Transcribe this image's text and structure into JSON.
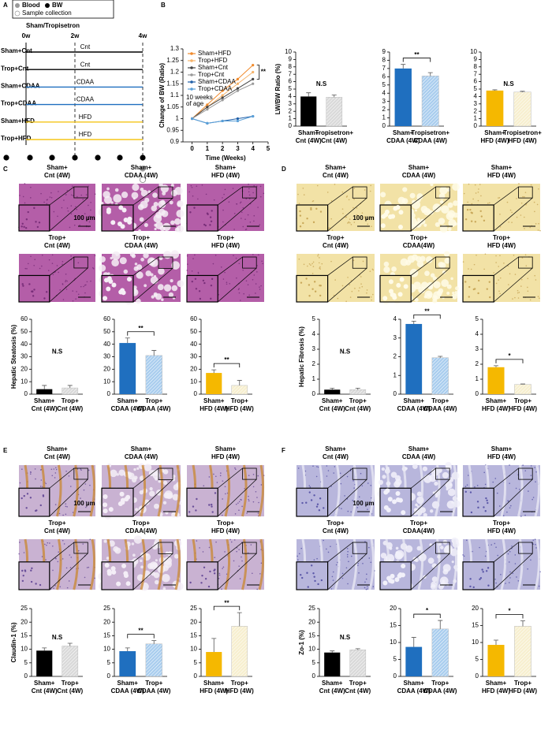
{
  "panel_labels": [
    "A",
    "B",
    "C",
    "D",
    "E",
    "F"
  ],
  "timeline": {
    "legend": [
      "Blood",
      "BW",
      "Sample collection"
    ],
    "title": "Sham/Tropisetron",
    "weeks": [
      "0w",
      "2w",
      "4w"
    ],
    "groups": [
      {
        "name": "Sham+Cnt",
        "diet": "Cnt",
        "color": "#000000"
      },
      {
        "name": "Trop+Cnt",
        "diet": "Cnt",
        "color": "#000000"
      },
      {
        "name": "Sham+CDAA",
        "diet": "CDAA",
        "color": "#1f6fbf"
      },
      {
        "name": "Trop+CDAA",
        "diet": "CDAA",
        "color": "#1f6fbf"
      },
      {
        "name": "Sham+HFD",
        "diet": "HFD",
        "color": "#f5c518"
      },
      {
        "name": "Trop+HFD",
        "diet": "HFD",
        "color": "#f5c518"
      }
    ]
  },
  "histology": [
    {
      "labels": [
        [
          "Sham+",
          "Cnt (4W)"
        ],
        [
          "Sham+",
          "CDAA (4W)"
        ],
        [
          "Sham+",
          "HFD (4W)"
        ],
        [
          "Trop+",
          "Cnt (4W)"
        ],
        [
          "Trop+",
          "CDAA (4W)"
        ],
        [
          "Trop+",
          "HFD (4W)"
        ]
      ],
      "scale_bar": "100 µm"
    },
    {
      "labels": [
        [
          "Sham+",
          "Cnt (4W)"
        ],
        [
          "Sham+",
          "CDAA (4W)"
        ],
        [
          "Sham+",
          "HFD (4W)"
        ],
        [
          "Trop+",
          "Cnt (4W)"
        ],
        [
          "Trop+",
          "CDAA(4W)"
        ],
        [
          "Trop+",
          "HFD (4W)"
        ]
      ],
      "scale_bar": "100 µm"
    },
    {
      "labels": [
        [
          "Sham+",
          "Cnt (4W)"
        ],
        [
          "Sham+",
          "CDAA (4W)"
        ],
        [
          "Sham+",
          "HFD (4W)"
        ],
        [
          "Trop+",
          "Cnt (4W)"
        ],
        [
          "Trop+",
          "CDAA(4W)"
        ],
        [
          "Trop+",
          "HFD (4W)"
        ]
      ],
      "scale_bar": "100 µm"
    },
    {
      "labels": [
        [
          "Sham+",
          "Cnt (4W)"
        ],
        [
          "Sham+",
          "CDAA (4W)"
        ],
        [
          "Sham+",
          "HFD (4W)"
        ],
        [
          "Trop+",
          "Cnt (4W)"
        ],
        [
          "Trop+",
          "CDAA(4W)"
        ],
        [
          "Trop+",
          "HFD (4W)"
        ]
      ],
      "scale_bar": "100 µm"
    }
  ],
  "chart_data": [
    {
      "type": "line",
      "ylabel": "Change of BW (Ratio)",
      "xlabel": "Time (Weeks)",
      "x": [
        0,
        1,
        2,
        3,
        4
      ],
      "xlim": [
        -0.6,
        5
      ],
      "xticks": [
        0,
        1,
        2,
        3,
        4,
        5
      ],
      "ylim": [
        0.9,
        1.3
      ],
      "yticks": [
        0.9,
        0.95,
        1,
        1.05,
        1.1,
        1.15,
        1.2,
        1.25,
        1.3
      ],
      "annotations": [
        "10 weeks",
        "of age",
        "**"
      ],
      "series": [
        {
          "name": "Sham+HFD",
          "color": "#f08a2c",
          "values": [
            1.0,
            1.06,
            1.12,
            1.17,
            1.23
          ]
        },
        {
          "name": "Trop+HFD",
          "color": "#f5b36b",
          "values": [
            1.0,
            1.05,
            1.1,
            1.15,
            1.2
          ]
        },
        {
          "name": "Sham+Cnt",
          "color": "#444444",
          "values": [
            1.0,
            1.05,
            1.09,
            1.13,
            1.17
          ]
        },
        {
          "name": "Trop+Cnt",
          "color": "#9a9a9a",
          "values": [
            1.0,
            1.04,
            1.08,
            1.12,
            1.15
          ]
        },
        {
          "name": "Sham+CDAA",
          "color": "#1f5fa8",
          "values": [
            1.0,
            0.98,
            0.99,
            1.0,
            1.01
          ]
        },
        {
          "name": "Trop+CDAA",
          "color": "#5aa0d8",
          "values": [
            1.0,
            0.98,
            0.99,
            0.99,
            1.01
          ]
        }
      ]
    },
    {
      "type": "bar",
      "ylabel": "LW/BW Ratio (%)",
      "categories": [
        [
          "Sham+",
          "Cnt (4W)"
        ],
        [
          "Tropisetron+",
          "Cnt (4W)"
        ]
      ],
      "values": [
        4.0,
        3.9
      ],
      "errors": [
        0.5,
        0.3
      ],
      "colors": [
        "#000000",
        "#d9d9d9"
      ],
      "ylim": [
        0,
        10
      ],
      "yticks": [
        0,
        1,
        2,
        3,
        4,
        5,
        6,
        7,
        8,
        9,
        10
      ],
      "annotation": "N.S",
      "significance_bracket": false
    },
    {
      "type": "bar",
      "categories": [
        [
          "Sham+",
          "CDAA (4W)"
        ],
        [
          "Tropisetron+",
          "CDAA (4W)"
        ]
      ],
      "values": [
        7.0,
        6.1
      ],
      "errors": [
        0.5,
        0.4
      ],
      "colors": [
        "#1f6fbf",
        "#a9cdee"
      ],
      "ylim": [
        0,
        9
      ],
      "yticks": [
        0,
        1,
        2,
        3,
        4,
        5,
        6,
        7,
        8,
        9
      ],
      "annotation": "**",
      "significance_bracket": true
    },
    {
      "type": "bar",
      "categories": [
        [
          "Sham+",
          "HFD (4W)"
        ],
        [
          "Tropisetron+",
          "HFD (4W)"
        ]
      ],
      "values": [
        4.8,
        4.6
      ],
      "errors": [
        0.1,
        0.1
      ],
      "colors": [
        "#f5b800",
        "#f7efcf"
      ],
      "ylim": [
        0,
        10
      ],
      "yticks": [
        0,
        1,
        2,
        3,
        4,
        5,
        6,
        7,
        8,
        9,
        10
      ],
      "annotation": "N.S",
      "significance_bracket": false
    },
    {
      "type": "bar",
      "ylabel": "Hepatic Steatosis (%)",
      "categories": [
        [
          "Sham+",
          "Cnt (4W)"
        ],
        [
          "Trop+",
          "Cnt (4W)"
        ]
      ],
      "values": [
        4,
        5
      ],
      "errors": [
        3,
        2
      ],
      "colors": [
        "#000000",
        "#d9d9d9"
      ],
      "ylim": [
        0,
        60
      ],
      "yticks": [
        0,
        10,
        20,
        30,
        40,
        50,
        60
      ],
      "annotation": "N.S",
      "significance_bracket": false
    },
    {
      "type": "bar",
      "categories": [
        [
          "Sham+",
          "CDAA (4W)"
        ],
        [
          "Trop+",
          "CDAA (4W)"
        ]
      ],
      "values": [
        41,
        31
      ],
      "errors": [
        4,
        4
      ],
      "colors": [
        "#1f6fbf",
        "#a9cdee"
      ],
      "ylim": [
        0,
        60
      ],
      "yticks": [
        0,
        10,
        20,
        30,
        40,
        50,
        60
      ],
      "annotation": "**",
      "significance_bracket": true
    },
    {
      "type": "bar",
      "categories": [
        [
          "Sham+",
          "HFD (4W)"
        ],
        [
          "Trop+",
          "HFD (4W)"
        ]
      ],
      "values": [
        17,
        7
      ],
      "errors": [
        2.5,
        4
      ],
      "colors": [
        "#f5b800",
        "#f7efcf"
      ],
      "ylim": [
        0,
        60
      ],
      "yticks": [
        0,
        10,
        20,
        30,
        40,
        50,
        60
      ],
      "annotation": "**",
      "significance_bracket": true
    },
    {
      "type": "bar",
      "ylabel": "Hepatic Fibrosis (%)",
      "categories": [
        [
          "Sham+",
          "Cnt (4W)"
        ],
        [
          "Trop+",
          "Cnt (4W)"
        ]
      ],
      "values": [
        0.3,
        0.3
      ],
      "errors": [
        0.1,
        0.1
      ],
      "colors": [
        "#000000",
        "#d9d9d9"
      ],
      "ylim": [
        0,
        5
      ],
      "yticks": [
        0,
        1,
        2,
        3,
        4,
        5
      ],
      "annotation": "N.S",
      "significance_bracket": false
    },
    {
      "type": "bar",
      "categories": [
        [
          "Sham+",
          "CDAA (4W)"
        ],
        [
          "Trop+",
          "CDAA (4W)"
        ]
      ],
      "values": [
        3.75,
        1.95
      ],
      "errors": [
        0.15,
        0.07
      ],
      "colors": [
        "#1f6fbf",
        "#a9cdee"
      ],
      "ylim": [
        0,
        4
      ],
      "yticks": [
        0,
        1,
        2,
        3,
        4
      ],
      "annotation": "**",
      "significance_bracket": true
    },
    {
      "type": "bar",
      "categories": [
        [
          "Sham+",
          "HFD (4W)"
        ],
        [
          "Trop+",
          "HFD (4W)"
        ]
      ],
      "values": [
        1.8,
        0.65
      ],
      "errors": [
        0.1,
        0.03
      ],
      "colors": [
        "#f5b800",
        "#f7efcf"
      ],
      "ylim": [
        0,
        5
      ],
      "yticks": [
        0,
        1,
        2,
        3,
        4,
        5
      ],
      "annotation": "*",
      "significance_bracket": true
    },
    {
      "type": "bar",
      "ylabel": "Claudin-1 (%)",
      "categories": [
        [
          "Sham+",
          "Cnt (4W)"
        ],
        [
          "Trop+",
          "Cnt (4W)"
        ]
      ],
      "values": [
        9.5,
        11.2
      ],
      "errors": [
        1,
        1
      ],
      "colors": [
        "#000000",
        "#d9d9d9"
      ],
      "ylim": [
        0,
        25
      ],
      "yticks": [
        0,
        5,
        10,
        15,
        20,
        25
      ],
      "annotation": "N.S",
      "significance_bracket": false
    },
    {
      "type": "bar",
      "categories": [
        [
          "Sham+",
          "CDAA (4W)"
        ],
        [
          "Trop+",
          "CDAA (4W)"
        ]
      ],
      "values": [
        9.3,
        12
      ],
      "errors": [
        1.2,
        1.2
      ],
      "colors": [
        "#1f6fbf",
        "#a9cdee"
      ],
      "ylim": [
        0,
        25
      ],
      "yticks": [
        0,
        5,
        10,
        15,
        20,
        25
      ],
      "annotation": "**",
      "significance_bracket": true
    },
    {
      "type": "bar",
      "categories": [
        [
          "Sham+",
          "HFD (4W)"
        ],
        [
          "Trop+",
          "HFD (4W)"
        ]
      ],
      "values": [
        9,
        18.5
      ],
      "errors": [
        5,
        5
      ],
      "colors": [
        "#f5b800",
        "#f7efcf"
      ],
      "ylim": [
        0,
        25
      ],
      "yticks": [
        0,
        5,
        10,
        15,
        20,
        25
      ],
      "annotation": "**",
      "significance_bracket": true
    },
    {
      "type": "bar",
      "ylabel": "Zo-1 (%)",
      "categories": [
        [
          "Sham+",
          "Cnt (4W)"
        ],
        [
          "Trop+",
          "Cnt (4W)"
        ]
      ],
      "values": [
        8.8,
        9.8
      ],
      "errors": [
        0.6,
        0.4
      ],
      "colors": [
        "#000000",
        "#d9d9d9"
      ],
      "ylim": [
        0,
        25
      ],
      "yticks": [
        0,
        5,
        10,
        15,
        20,
        25
      ],
      "annotation": "N.S",
      "significance_bracket": false
    },
    {
      "type": "bar",
      "categories": [
        [
          "Sham+",
          "CDAA (4W)"
        ],
        [
          "Trop+",
          "CDAA (4W)"
        ]
      ],
      "values": [
        8.7,
        14
      ],
      "errors": [
        2.8,
        2.5
      ],
      "colors": [
        "#1f6fbf",
        "#a9cdee"
      ],
      "ylim": [
        0,
        20
      ],
      "yticks": [
        0,
        5,
        10,
        15,
        20
      ],
      "annotation": "*",
      "significance_bracket": true
    },
    {
      "type": "bar",
      "categories": [
        [
          "Sham+",
          "HFD (4W)"
        ],
        [
          "Trop+",
          "HFD (4W)"
        ]
      ],
      "values": [
        9.3,
        14.8
      ],
      "errors": [
        1.4,
        1.6
      ],
      "colors": [
        "#f5b800",
        "#f7efcf"
      ],
      "ylim": [
        0,
        20
      ],
      "yticks": [
        0,
        5,
        10,
        15,
        20
      ],
      "annotation": "*",
      "significance_bracket": true
    }
  ]
}
